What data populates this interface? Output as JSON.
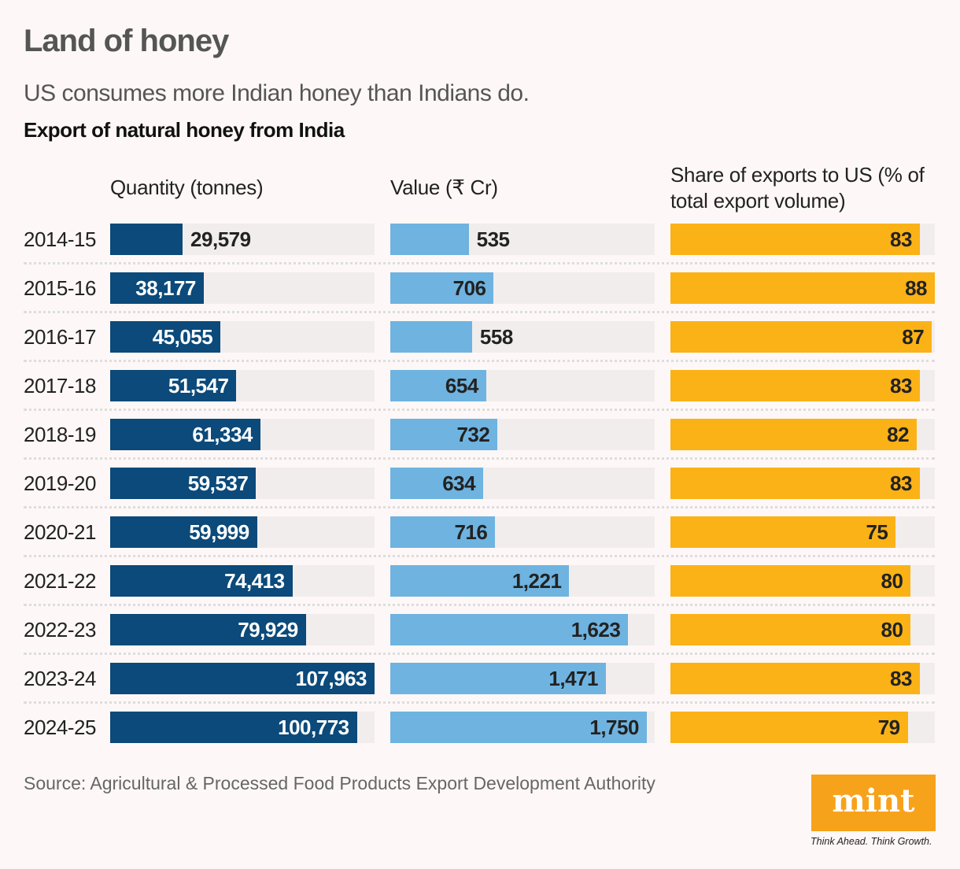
{
  "title": "Land of honey",
  "subtitle": "US consumes more Indian honey than Indians do.",
  "heading": "Export of natural honey from India",
  "source": "Source: Agricultural & Processed Food Products Export Development Authority",
  "logo": {
    "text": "mint",
    "tagline": "Think Ahead. Think Growth."
  },
  "chart_data": {
    "type": "bar",
    "orientation": "horizontal",
    "categories": [
      "2014-15",
      "2015-16",
      "2016-17",
      "2017-18",
      "2018-19",
      "2019-20",
      "2020-21",
      "2021-22",
      "2022-23",
      "2023-24",
      "2024-25"
    ],
    "series": [
      {
        "name": "Quantity (tonnes)",
        "color": "#0b4a7a",
        "label_color": "#ffffff",
        "values": [
          29579,
          38177,
          45055,
          51547,
          61334,
          59537,
          59999,
          74413,
          79929,
          107963,
          100773
        ],
        "labels": [
          "29,579",
          "38,177",
          "45,055",
          "51,547",
          "61,334",
          "59,537",
          "59,999",
          "74,413",
          "79,929",
          "107,963",
          "100,773"
        ]
      },
      {
        "name": "Value (₹ Cr)",
        "color": "#6fb3e0",
        "label_color": "#222222",
        "values": [
          535,
          706,
          558,
          654,
          732,
          634,
          716,
          1221,
          1623,
          1471,
          1750
        ],
        "labels": [
          "535",
          "706",
          "558",
          "654",
          "732",
          "634",
          "716",
          "1,221",
          "1,623",
          "1,471",
          "1,750"
        ]
      },
      {
        "name": "Share of exports to US (% of total export volume)",
        "color": "#fbb216",
        "label_color": "#222222",
        "values": [
          83,
          88,
          87,
          83,
          82,
          83,
          75,
          80,
          80,
          83,
          79
        ],
        "labels": [
          "83",
          "88",
          "87",
          "83",
          "82",
          "83",
          "75",
          "80",
          "80",
          "83",
          "79"
        ]
      }
    ],
    "track_color": "#f2eded"
  }
}
